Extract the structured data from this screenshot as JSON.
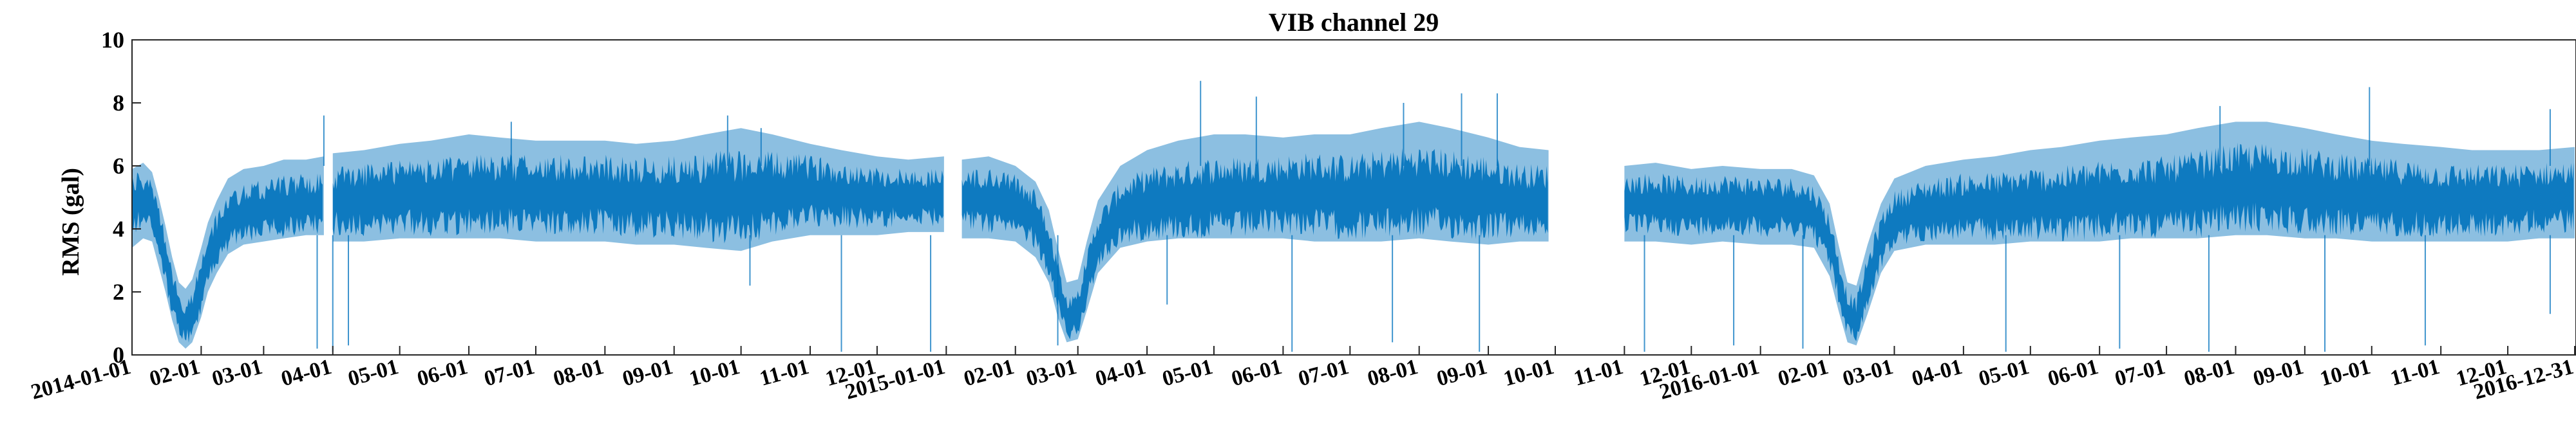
{
  "chart_data": {
    "type": "line",
    "title": "VIB channel 29",
    "xlabel": "",
    "ylabel": "RMS (gal)",
    "xlim": [
      "2014-01-01",
      "2016-12-31"
    ],
    "ylim": [
      0,
      10
    ],
    "yticks": [
      0,
      2,
      4,
      6,
      8,
      10
    ],
    "xticks": [
      {
        "date": "2014-01-01",
        "label": "2014-01-01"
      },
      {
        "date": "2014-02-01",
        "label": "02-01"
      },
      {
        "date": "2014-03-01",
        "label": "03-01"
      },
      {
        "date": "2014-04-01",
        "label": "04-01"
      },
      {
        "date": "2014-05-01",
        "label": "05-01"
      },
      {
        "date": "2014-06-01",
        "label": "06-01"
      },
      {
        "date": "2014-07-01",
        "label": "07-01"
      },
      {
        "date": "2014-08-01",
        "label": "08-01"
      },
      {
        "date": "2014-09-01",
        "label": "09-01"
      },
      {
        "date": "2014-10-01",
        "label": "10-01"
      },
      {
        "date": "2014-11-01",
        "label": "11-01"
      },
      {
        "date": "2014-12-01",
        "label": "12-01"
      },
      {
        "date": "2015-01-01",
        "label": "2015-01-01"
      },
      {
        "date": "2015-02-01",
        "label": "02-01"
      },
      {
        "date": "2015-03-01",
        "label": "03-01"
      },
      {
        "date": "2015-04-01",
        "label": "04-01"
      },
      {
        "date": "2015-05-01",
        "label": "05-01"
      },
      {
        "date": "2015-06-01",
        "label": "06-01"
      },
      {
        "date": "2015-07-01",
        "label": "07-01"
      },
      {
        "date": "2015-08-01",
        "label": "08-01"
      },
      {
        "date": "2015-09-01",
        "label": "09-01"
      },
      {
        "date": "2015-10-01",
        "label": "10-01"
      },
      {
        "date": "2015-11-01",
        "label": "11-01"
      },
      {
        "date": "2015-12-01",
        "label": "12-01"
      },
      {
        "date": "2016-01-01",
        "label": "2016-01-01"
      },
      {
        "date": "2016-02-01",
        "label": "02-01"
      },
      {
        "date": "2016-03-01",
        "label": "03-01"
      },
      {
        "date": "2016-04-01",
        "label": "04-01"
      },
      {
        "date": "2016-05-01",
        "label": "05-01"
      },
      {
        "date": "2016-06-01",
        "label": "06-01"
      },
      {
        "date": "2016-07-01",
        "label": "07-01"
      },
      {
        "date": "2016-08-01",
        "label": "08-01"
      },
      {
        "date": "2016-09-01",
        "label": "09-01"
      },
      {
        "date": "2016-10-01",
        "label": "10-01"
      },
      {
        "date": "2016-11-01",
        "label": "11-01"
      },
      {
        "date": "2016-12-01",
        "label": "12-01"
      },
      {
        "date": "2016-12-31",
        "label": "2016-12-31"
      }
    ],
    "grid": false,
    "legend": "none",
    "color": "#0072BD",
    "series": [
      {
        "segments": [
          {
            "x": [
              "2014-01-01",
              "2014-01-06",
              "2014-01-10",
              "2014-01-13",
              "2014-01-16",
              "2014-01-19",
              "2014-01-22",
              "2014-01-25",
              "2014-01-28",
              "2014-02-01",
              "2014-02-04",
              "2014-02-08",
              "2014-02-13",
              "2014-02-20",
              "2014-03-01",
              "2014-03-10",
              "2014-03-20",
              "2014-03-28"
            ],
            "median": [
              4.8,
              4.9,
              4.8,
              4.0,
              3.0,
              2.0,
              1.3,
              1.0,
              1.3,
              2.2,
              3.0,
              3.6,
              4.2,
              4.5,
              4.6,
              4.7,
              4.8,
              4.8
            ],
            "lower": [
              3.4,
              3.7,
              3.6,
              2.8,
              2.0,
              1.1,
              0.4,
              0.2,
              0.4,
              1.2,
              2.0,
              2.6,
              3.2,
              3.5,
              3.6,
              3.7,
              3.8,
              3.8
            ],
            "upper": [
              5.9,
              6.1,
              5.8,
              5.0,
              4.1,
              3.1,
              2.3,
              2.1,
              2.4,
              3.4,
              4.2,
              4.9,
              5.6,
              5.9,
              6.0,
              6.2,
              6.2,
              6.3
            ]
          },
          {
            "x": [
              "2014-04-01",
              "2014-04-15",
              "2014-05-01",
              "2014-05-15",
              "2014-06-01",
              "2014-06-15",
              "2014-07-01",
              "2014-07-15",
              "2014-08-01",
              "2014-08-15",
              "2014-09-01",
              "2014-09-15",
              "2014-10-01",
              "2014-10-15",
              "2014-11-01",
              "2014-11-15",
              "2014-12-01",
              "2014-12-15",
              "2014-12-31"
            ],
            "median": [
              4.9,
              4.9,
              5.0,
              5.0,
              5.1,
              5.1,
              5.1,
              5.1,
              5.1,
              5.0,
              5.0,
              5.0,
              5.0,
              5.1,
              5.2,
              5.1,
              5.0,
              5.0,
              5.0
            ],
            "lower": [
              3.6,
              3.6,
              3.7,
              3.7,
              3.7,
              3.7,
              3.6,
              3.6,
              3.6,
              3.5,
              3.5,
              3.4,
              3.3,
              3.6,
              3.8,
              3.8,
              3.8,
              3.9,
              3.9
            ],
            "upper": [
              6.4,
              6.5,
              6.7,
              6.8,
              7.0,
              6.9,
              6.8,
              6.8,
              6.8,
              6.7,
              6.8,
              7.0,
              7.2,
              7.0,
              6.7,
              6.5,
              6.3,
              6.2,
              6.3
            ]
          },
          {
            "x": [
              "2015-01-08",
              "2015-01-20",
              "2015-02-01",
              "2015-02-10",
              "2015-02-16",
              "2015-02-20",
              "2015-02-24",
              "2015-03-01",
              "2015-03-05",
              "2015-03-10",
              "2015-03-20",
              "2015-04-01",
              "2015-04-15",
              "2015-05-01",
              "2015-05-15",
              "2015-06-01",
              "2015-06-15",
              "2015-07-01",
              "2015-07-15",
              "2015-08-01",
              "2015-08-15",
              "2015-09-01",
              "2015-09-15",
              "2015-09-28"
            ],
            "median": [
              4.9,
              4.9,
              4.8,
              4.3,
              3.4,
              2.2,
              1.2,
              1.3,
              2.4,
              3.6,
              4.5,
              4.8,
              4.9,
              5.0,
              5.0,
              5.1,
              5.1,
              5.0,
              5.1,
              5.2,
              5.1,
              5.0,
              4.9,
              4.9
            ],
            "lower": [
              3.7,
              3.7,
              3.6,
              3.1,
              2.3,
              1.2,
              0.4,
              0.5,
              1.4,
              2.6,
              3.4,
              3.6,
              3.7,
              3.7,
              3.7,
              3.7,
              3.6,
              3.6,
              3.6,
              3.7,
              3.6,
              3.5,
              3.6,
              3.6
            ],
            "upper": [
              6.2,
              6.3,
              6.0,
              5.5,
              4.6,
              3.4,
              2.3,
              2.4,
              3.6,
              4.9,
              6.0,
              6.5,
              6.8,
              7.0,
              7.0,
              6.9,
              7.0,
              7.0,
              7.2,
              7.4,
              7.2,
              6.9,
              6.6,
              6.5
            ]
          },
          {
            "x": [
              "2015-11-01",
              "2015-11-15",
              "2015-12-01",
              "2015-12-15",
              "2016-01-01",
              "2016-01-15",
              "2016-01-25",
              "2016-02-01",
              "2016-02-05",
              "2016-02-09",
              "2016-02-13",
              "2016-02-18",
              "2016-02-24",
              "2016-03-01",
              "2016-03-15",
              "2016-04-01",
              "2016-04-15",
              "2016-05-01",
              "2016-05-15",
              "2016-06-01",
              "2016-06-15",
              "2016-07-01",
              "2016-07-15",
              "2016-08-01",
              "2016-08-15",
              "2016-09-01",
              "2016-09-15",
              "2016-10-01",
              "2016-10-15",
              "2016-11-01",
              "2016-11-15",
              "2016-12-01",
              "2016-12-15",
              "2016-12-31"
            ],
            "median": [
              4.8,
              4.8,
              4.7,
              4.8,
              4.7,
              4.7,
              4.5,
              3.6,
              2.4,
              1.3,
              1.1,
              2.3,
              3.6,
              4.3,
              4.6,
              4.7,
              4.7,
              4.8,
              4.8,
              4.9,
              5.0,
              5.0,
              5.1,
              5.3,
              5.3,
              5.2,
              5.1,
              5.0,
              5.0,
              4.9,
              4.9,
              4.9,
              5.0,
              5.0
            ],
            "lower": [
              3.6,
              3.6,
              3.5,
              3.6,
              3.5,
              3.5,
              3.4,
              2.5,
              1.4,
              0.4,
              0.3,
              1.3,
              2.6,
              3.3,
              3.5,
              3.5,
              3.5,
              3.6,
              3.6,
              3.6,
              3.7,
              3.7,
              3.7,
              3.8,
              3.8,
              3.7,
              3.7,
              3.6,
              3.6,
              3.6,
              3.6,
              3.6,
              3.7,
              3.7
            ],
            "upper": [
              6.0,
              6.1,
              5.9,
              6.0,
              5.9,
              5.9,
              5.7,
              4.8,
              3.5,
              2.3,
              2.2,
              3.5,
              4.8,
              5.6,
              6.0,
              6.2,
              6.3,
              6.5,
              6.6,
              6.8,
              6.9,
              7.0,
              7.2,
              7.4,
              7.4,
              7.2,
              7.0,
              6.8,
              6.7,
              6.6,
              6.5,
              6.5,
              6.5,
              6.6
            ]
          }
        ],
        "spikes": [
          {
            "x": "2014-03-28",
            "y": 7.6
          },
          {
            "x": "2014-06-20",
            "y": 7.4
          },
          {
            "x": "2014-09-25",
            "y": 7.6
          },
          {
            "x": "2014-10-10",
            "y": 7.2
          },
          {
            "x": "2015-04-25",
            "y": 8.7
          },
          {
            "x": "2015-05-20",
            "y": 8.2
          },
          {
            "x": "2015-07-25",
            "y": 8.0
          },
          {
            "x": "2015-08-20",
            "y": 8.3
          },
          {
            "x": "2015-09-05",
            "y": 8.3
          },
          {
            "x": "2016-07-25",
            "y": 7.9
          },
          {
            "x": "2016-09-30",
            "y": 8.5
          },
          {
            "x": "2016-12-20",
            "y": 7.8
          }
        ],
        "dips": [
          {
            "x": "2014-03-25",
            "y": 0.2
          },
          {
            "x": "2014-04-01",
            "y": 0.1
          },
          {
            "x": "2014-04-08",
            "y": 0.3
          },
          {
            "x": "2014-10-05",
            "y": 2.2
          },
          {
            "x": "2014-11-15",
            "y": 0.1
          },
          {
            "x": "2014-12-25",
            "y": 0.1
          },
          {
            "x": "2015-02-20",
            "y": 0.3
          },
          {
            "x": "2015-04-10",
            "y": 1.6
          },
          {
            "x": "2015-06-05",
            "y": 0.1
          },
          {
            "x": "2015-07-20",
            "y": 0.4
          },
          {
            "x": "2015-08-28",
            "y": 0.1
          },
          {
            "x": "2015-11-10",
            "y": 0.1
          },
          {
            "x": "2015-12-20",
            "y": 0.3
          },
          {
            "x": "2016-01-20",
            "y": 0.2
          },
          {
            "x": "2016-04-20",
            "y": 0.1
          },
          {
            "x": "2016-06-10",
            "y": 0.2
          },
          {
            "x": "2016-07-20",
            "y": 0.1
          },
          {
            "x": "2016-09-10",
            "y": 0.1
          },
          {
            "x": "2016-10-25",
            "y": 0.3
          },
          {
            "x": "2016-12-20",
            "y": 1.3
          }
        ]
      }
    ]
  }
}
